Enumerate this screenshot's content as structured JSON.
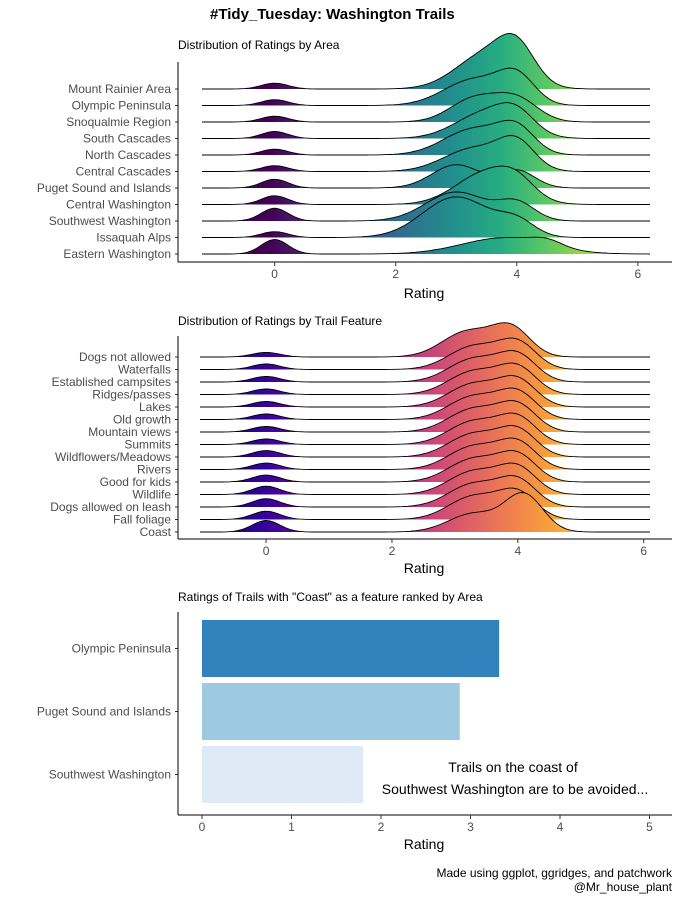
{
  "title": "#Tidy_Tuesday: Washington Trails",
  "caption": {
    "line1": "Made using ggplot, ggridges, and patchwork",
    "line2": "@Mr_house_plant"
  },
  "colors": {
    "viridis": [
      "#440154",
      "#472f7d",
      "#3b528b",
      "#2c728e",
      "#21908d",
      "#27ad81",
      "#5cc863",
      "#aadc32",
      "#fde725"
    ],
    "plasma": [
      "#0d0887",
      "#5c01a6",
      "#9c179e",
      "#cc4778",
      "#ed7953",
      "#fdb32f",
      "#f0f921"
    ],
    "bars": [
      "#3182bd",
      "#9ecae1",
      "#deebf7"
    ]
  },
  "chart_data": [
    {
      "type": "area",
      "subtype": "ridgeline",
      "title": "Distribution of Ratings by Area",
      "xlabel": "Rating",
      "ylabel": "",
      "xlim": [
        -1.2,
        6.2
      ],
      "xticks": [
        0,
        2,
        4,
        6
      ],
      "grid": false,
      "fill_scale": "viridis",
      "categories": [
        "Mount Rainier Area",
        "Olympic Peninsula",
        "Snoqualmie Region",
        "South Cascades",
        "North Cascades",
        "Central Cascades",
        "Puget Sound and Islands",
        "Central Washington",
        "Southwest Washington",
        "Issaquah Alps",
        "Eastern Washington"
      ],
      "series": [
        {
          "name": "Mount Rainier Area",
          "components": [
            [
              0.0,
              0.22,
              0.1
            ],
            [
              3.5,
              0.5,
              0.6
            ],
            [
              4.0,
              0.3,
              0.55
            ]
          ]
        },
        {
          "name": "Olympic Peninsula",
          "components": [
            [
              0.0,
              0.22,
              0.1
            ],
            [
              3.3,
              0.5,
              0.45
            ],
            [
              4.0,
              0.3,
              0.45
            ]
          ]
        },
        {
          "name": "Snoqualmie Region",
          "components": [
            [
              0.0,
              0.22,
              0.1
            ],
            [
              3.3,
              0.4,
              0.4
            ],
            [
              4.0,
              0.35,
              0.38
            ]
          ]
        },
        {
          "name": "South Cascades",
          "components": [
            [
              0.0,
              0.22,
              0.12
            ],
            [
              3.5,
              0.5,
              0.45
            ],
            [
              4.0,
              0.3,
              0.3
            ]
          ]
        },
        {
          "name": "North Cascades",
          "components": [
            [
              0.0,
              0.22,
              0.1
            ],
            [
              3.3,
              0.5,
              0.45
            ],
            [
              4.0,
              0.3,
              0.4
            ]
          ]
        },
        {
          "name": "Central Cascades",
          "components": [
            [
              0.0,
              0.22,
              0.1
            ],
            [
              3.3,
              0.5,
              0.4
            ],
            [
              4.0,
              0.3,
              0.45
            ]
          ]
        },
        {
          "name": "Puget Sound and Islands",
          "components": [
            [
              0.0,
              0.22,
              0.15
            ],
            [
              3.0,
              0.4,
              0.4
            ],
            [
              4.0,
              0.3,
              0.3
            ]
          ]
        },
        {
          "name": "Central Washington",
          "components": [
            [
              0.0,
              0.22,
              0.15
            ],
            [
              3.5,
              0.5,
              0.55
            ],
            [
              4.0,
              0.3,
              0.25
            ]
          ]
        },
        {
          "name": "Southwest Washington",
          "components": [
            [
              0.0,
              0.22,
              0.22
            ],
            [
              3.0,
              0.5,
              0.5
            ],
            [
              4.0,
              0.3,
              0.3
            ]
          ]
        },
        {
          "name": "Issaquah Alps",
          "components": [
            [
              0.0,
              0.22,
              0.1
            ],
            [
              3.0,
              0.55,
              0.7
            ],
            [
              4.0,
              0.3,
              0.25
            ]
          ]
        },
        {
          "name": "Eastern Washington",
          "components": [
            [
              0.0,
              0.22,
              0.25
            ],
            [
              3.8,
              0.7,
              0.28
            ],
            [
              4.5,
              0.25,
              0.1
            ]
          ]
        }
      ]
    },
    {
      "type": "area",
      "subtype": "ridgeline",
      "title": "Distribution of Ratings by Trail Feature",
      "xlabel": "Rating",
      "ylabel": "",
      "xlim": [
        -1.05,
        6.1
      ],
      "xticks": [
        0,
        2,
        4,
        6
      ],
      "grid": false,
      "fill_scale": "plasma",
      "categories": [
        "Dogs not allowed",
        "Waterfalls",
        "Established campsites",
        "Ridges/passes",
        "Lakes",
        "Old growth",
        "Mountain views",
        "Summits",
        "Wildflowers/Meadows",
        "Rivers",
        "Good for kids",
        "Wildlife",
        "Dogs allowed on leash",
        "Fall foliage",
        "Coast"
      ],
      "series": [
        {
          "name": "Dogs not allowed",
          "components": [
            [
              0.0,
              0.22,
              0.1
            ],
            [
              3.2,
              0.4,
              0.55
            ],
            [
              3.9,
              0.3,
              0.6
            ]
          ]
        },
        {
          "name": "Waterfalls",
          "components": [
            [
              0.0,
              0.22,
              0.12
            ],
            [
              3.3,
              0.4,
              0.5
            ],
            [
              4.0,
              0.3,
              0.55
            ]
          ]
        },
        {
          "name": "Established campsites",
          "components": [
            [
              0.0,
              0.22,
              0.12
            ],
            [
              3.3,
              0.4,
              0.5
            ],
            [
              4.0,
              0.3,
              0.55
            ]
          ]
        },
        {
          "name": "Ridges/passes",
          "components": [
            [
              0.0,
              0.22,
              0.12
            ],
            [
              3.3,
              0.4,
              0.5
            ],
            [
              4.0,
              0.3,
              0.55
            ]
          ]
        },
        {
          "name": "Lakes",
          "components": [
            [
              0.0,
              0.22,
              0.12
            ],
            [
              3.3,
              0.4,
              0.5
            ],
            [
              4.0,
              0.3,
              0.55
            ]
          ]
        },
        {
          "name": "Old growth",
          "components": [
            [
              0.0,
              0.22,
              0.12
            ],
            [
              3.3,
              0.4,
              0.5
            ],
            [
              4.0,
              0.3,
              0.55
            ]
          ]
        },
        {
          "name": "Mountain views",
          "components": [
            [
              0.0,
              0.22,
              0.12
            ],
            [
              3.3,
              0.4,
              0.5
            ],
            [
              4.0,
              0.3,
              0.55
            ]
          ]
        },
        {
          "name": "Summits",
          "components": [
            [
              0.0,
              0.22,
              0.12
            ],
            [
              3.3,
              0.4,
              0.5
            ],
            [
              4.0,
              0.3,
              0.55
            ]
          ]
        },
        {
          "name": "Wildflowers/Meadows",
          "components": [
            [
              0.0,
              0.22,
              0.14
            ],
            [
              3.3,
              0.4,
              0.5
            ],
            [
              4.0,
              0.3,
              0.55
            ]
          ]
        },
        {
          "name": "Rivers",
          "components": [
            [
              0.0,
              0.22,
              0.14
            ],
            [
              3.3,
              0.4,
              0.5
            ],
            [
              4.0,
              0.3,
              0.55
            ]
          ]
        },
        {
          "name": "Good for kids",
          "components": [
            [
              0.0,
              0.22,
              0.15
            ],
            [
              3.3,
              0.4,
              0.5
            ],
            [
              4.0,
              0.3,
              0.55
            ]
          ]
        },
        {
          "name": "Wildlife",
          "components": [
            [
              0.0,
              0.22,
              0.18
            ],
            [
              3.3,
              0.4,
              0.5
            ],
            [
              4.0,
              0.3,
              0.55
            ]
          ]
        },
        {
          "name": "Dogs allowed on leash",
          "components": [
            [
              0.0,
              0.22,
              0.18
            ],
            [
              3.3,
              0.4,
              0.5
            ],
            [
              4.0,
              0.3,
              0.55
            ]
          ]
        },
        {
          "name": "Fall foliage",
          "components": [
            [
              0.0,
              0.22,
              0.18
            ],
            [
              3.3,
              0.4,
              0.5
            ],
            [
              4.0,
              0.3,
              0.55
            ]
          ]
        },
        {
          "name": "Coast",
          "components": [
            [
              0.0,
              0.22,
              0.25
            ],
            [
              3.3,
              0.4,
              0.4
            ],
            [
              4.1,
              0.3,
              0.8
            ]
          ]
        }
      ]
    },
    {
      "type": "bar",
      "orientation": "horizontal",
      "title": "Ratings of Trails with \"Coast\" as a feature ranked by Area",
      "xlabel": "Rating",
      "ylabel": "",
      "xlim": [
        -0.25,
        5.15
      ],
      "xticks": [
        0,
        1,
        2,
        3,
        4,
        5
      ],
      "grid": false,
      "categories": [
        "Olympic Peninsula",
        "Puget Sound and Islands",
        "Southwest Washington"
      ],
      "values": [
        3.32,
        2.88,
        1.8
      ],
      "annotation": {
        "line1": "Trails on the coast of",
        "line2": "Southwest Washington are to be avoided...",
        "x": 3.5,
        "category": "Southwest Washington"
      }
    }
  ]
}
